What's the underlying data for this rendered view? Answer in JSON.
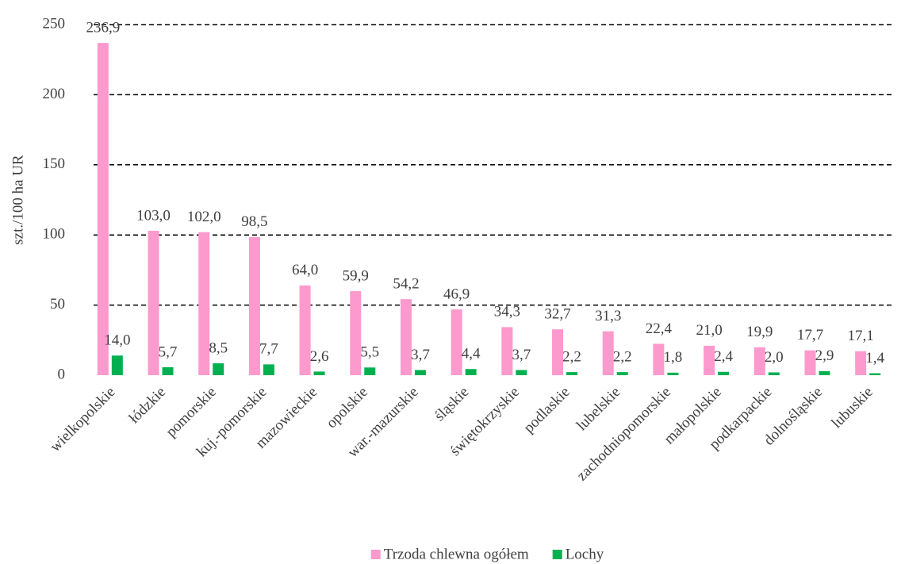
{
  "chart_data": {
    "type": "bar",
    "y_label": "szt./100 ha UR",
    "categories": [
      "wielkopolskie",
      "łódzkie",
      "pomorskie",
      "kuj.-pomorskie",
      "mazowieckie",
      "opolskie",
      "war.-mazurskie",
      "śląskie",
      "świętokrzyskie",
      "podlaskie",
      "lubelskie",
      "zachodniopomorskie",
      "małopolskie",
      "podkarpackie",
      "dolnośląskie",
      "lubuskie"
    ],
    "series": [
      {
        "name": "Trzoda chlewna ogółem",
        "color": "#fc99cd",
        "values": [
          236.9,
          103.0,
          102.0,
          98.5,
          64.0,
          59.9,
          54.2,
          46.9,
          34.3,
          32.7,
          31.3,
          22.4,
          21.0,
          19.9,
          17.7,
          17.1
        ],
        "value_labels": [
          "236,9",
          "103,0",
          "102,0",
          "98,5",
          "64,0",
          "59,9",
          "54,2",
          "46,9",
          "34,3",
          "32,7",
          "31,3",
          "22,4",
          "21,0",
          "19,9",
          "17,7",
          "17,1"
        ]
      },
      {
        "name": "Lochy",
        "color": "#00b050",
        "values": [
          14.0,
          5.7,
          8.5,
          7.7,
          2.6,
          5.5,
          3.7,
          4.4,
          3.7,
          2.2,
          2.2,
          1.8,
          2.4,
          2.0,
          2.9,
          1.4
        ],
        "value_labels": [
          "14,0",
          "5,7",
          "8,5",
          "7,7",
          "2,6",
          "5,5",
          "3,7",
          "4,4",
          "3,7",
          "2,2",
          "2,2",
          "1,8",
          "2,4",
          "2,0",
          "2,9",
          "1,4"
        ]
      }
    ],
    "ylim": [
      0,
      250
    ],
    "yticks": [
      0,
      50,
      100,
      150,
      200,
      250
    ],
    "grid": true,
    "legend": "bottom"
  }
}
